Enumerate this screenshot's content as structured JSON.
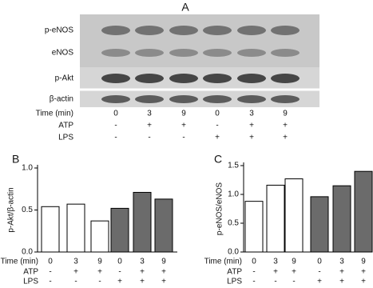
{
  "blot": {
    "label": "A",
    "bands": [
      "p-eNOS",
      "eNOS",
      "p-Akt",
      "β-actin"
    ],
    "rows": [
      {
        "name": "Time (min)",
        "values": [
          "0",
          "3",
          "9",
          "0",
          "3",
          "9"
        ]
      },
      {
        "name": "ATP",
        "values": [
          "-",
          "+",
          "+",
          "-",
          "+",
          "+"
        ]
      },
      {
        "name": "LPS",
        "values": [
          "-",
          "-",
          "-",
          "+",
          "+",
          "+"
        ]
      }
    ]
  },
  "chart_data": [
    {
      "type": "bar",
      "label": "B",
      "y_label": "p-Akt/β-actin",
      "x_label": "Time (min)",
      "categories": [
        "0",
        "3",
        "9",
        "0",
        "3",
        "9"
      ],
      "conditions": [
        {
          "name": "ATP",
          "values": [
            "-",
            "+",
            "+",
            "-",
            "+",
            "+"
          ]
        },
        {
          "name": "LPS",
          "values": [
            "-",
            "-",
            "-",
            "+",
            "+",
            "+"
          ]
        }
      ],
      "values": [
        0.54,
        0.57,
        0.37,
        0.52,
        0.71,
        0.63
      ],
      "colors": [
        "#ffffff",
        "#ffffff",
        "#ffffff",
        "#6b6b6b",
        "#6b6b6b",
        "#6b6b6b"
      ],
      "ylim": [
        0,
        1.0
      ],
      "yticks": [
        {
          "value": 0,
          "label": "0.0"
        },
        {
          "value": 0.5,
          "label": "0.5"
        },
        {
          "value": 1.0,
          "label": "1.0"
        }
      ]
    },
    {
      "type": "bar",
      "label": "C",
      "y_label": "p-eNOS/eNOS",
      "x_label": "Time (min)",
      "categories": [
        "0",
        "3",
        "9",
        "0",
        "3",
        "9"
      ],
      "conditions": [
        {
          "name": "ATP",
          "values": [
            "-",
            "+",
            "+",
            "-",
            "+",
            "+"
          ]
        },
        {
          "name": "LPS",
          "values": [
            "-",
            "-",
            "-",
            "+",
            "+",
            "+"
          ]
        }
      ],
      "values": [
        0.88,
        1.16,
        1.27,
        0.96,
        1.15,
        1.4
      ],
      "colors": [
        "#ffffff",
        "#ffffff",
        "#ffffff",
        "#6b6b6b",
        "#6b6b6b",
        "#6b6b6b"
      ],
      "ylim": [
        0,
        1.5
      ],
      "yticks": [
        {
          "value": 0,
          "label": "0.0"
        },
        {
          "value": 0.5,
          "label": "0.5"
        },
        {
          "value": 1.0,
          "label": "1.0"
        },
        {
          "value": 1.5,
          "label": "1.5"
        }
      ]
    }
  ]
}
